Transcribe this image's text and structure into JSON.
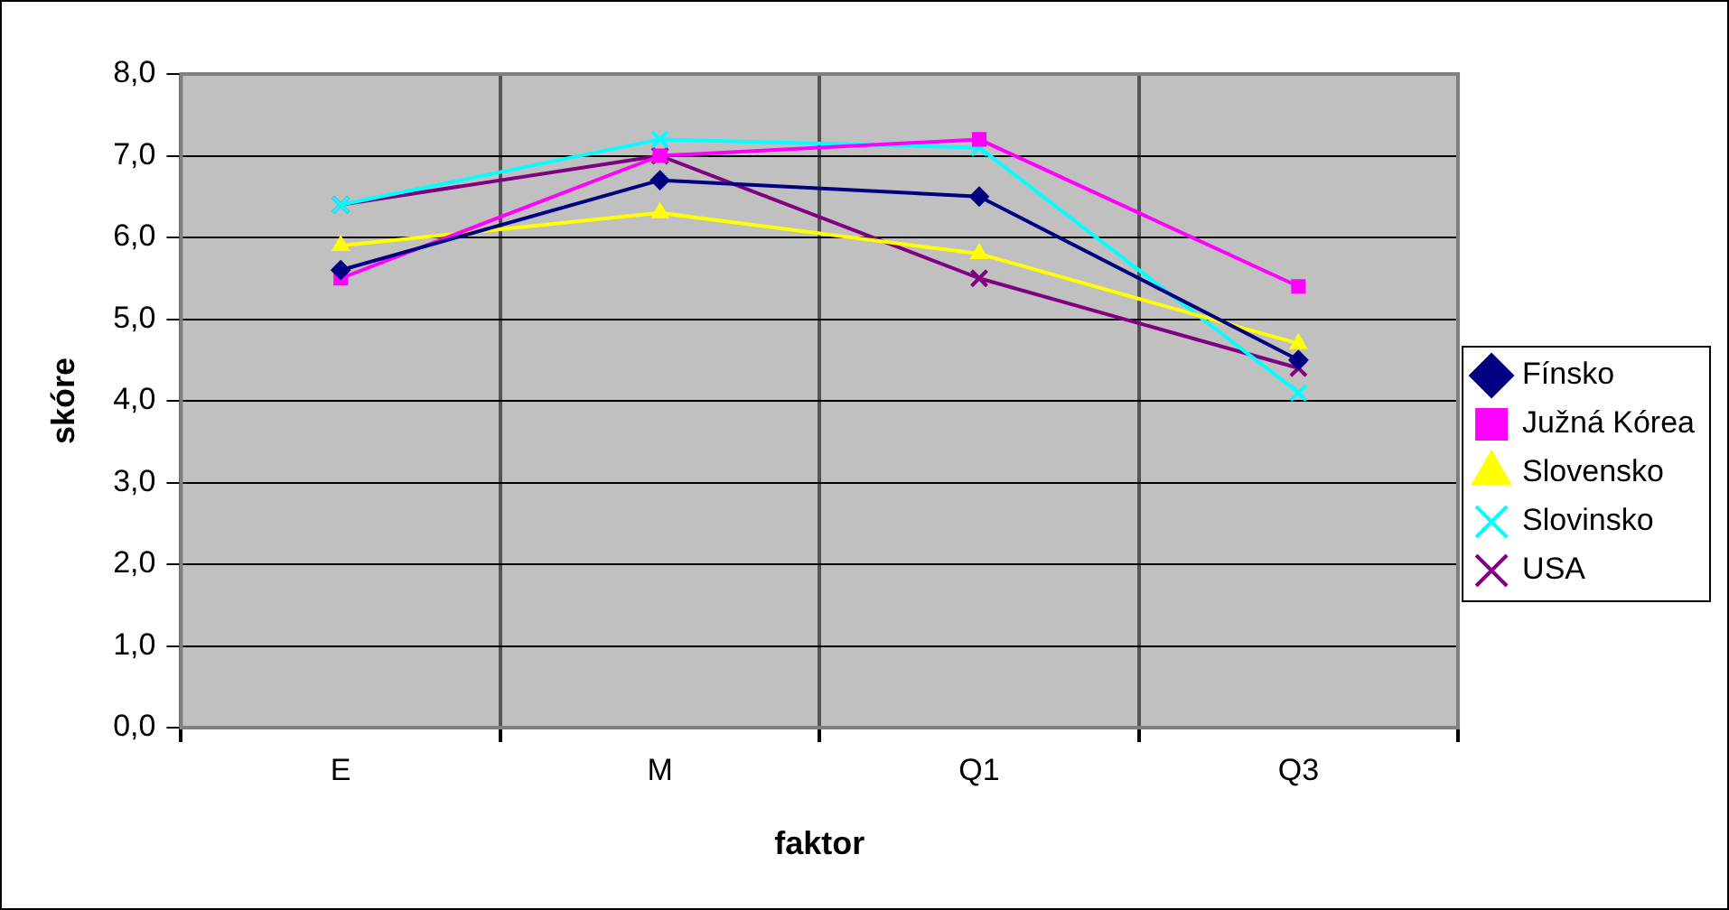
{
  "chart_data": {
    "type": "line",
    "xlabel": "faktor",
    "ylabel": "skóre",
    "categories": [
      "E",
      "M",
      "Q1",
      "Q3"
    ],
    "series": [
      {
        "name": "Fínsko",
        "color": "#000080",
        "marker": "diamond",
        "values": [
          5.6,
          6.7,
          6.5,
          4.5
        ]
      },
      {
        "name": "Južná Kórea",
        "color": "#ff00ff",
        "marker": "square",
        "values": [
          5.5,
          7.0,
          7.2,
          5.4
        ]
      },
      {
        "name": "Slovensko",
        "color": "#ffff00",
        "marker": "triangle",
        "values": [
          5.9,
          6.3,
          5.8,
          4.7
        ]
      },
      {
        "name": "Slovinsko",
        "color": "#00ffff",
        "marker": "cross",
        "values": [
          6.4,
          7.2,
          7.1,
          4.1
        ]
      },
      {
        "name": "USA",
        "color": "#800080",
        "marker": "cross",
        "values": [
          6.4,
          7.0,
          5.5,
          4.4
        ]
      }
    ],
    "ylim": [
      0,
      8
    ],
    "yticks": [
      {
        "value": 0,
        "label": "0,0"
      },
      {
        "value": 1,
        "label": "1,0"
      },
      {
        "value": 2,
        "label": "2,0"
      },
      {
        "value": 3,
        "label": "3,0"
      },
      {
        "value": 4,
        "label": "4,0"
      },
      {
        "value": 5,
        "label": "5,0"
      },
      {
        "value": 6,
        "label": "6,0"
      },
      {
        "value": 7,
        "label": "7,0"
      },
      {
        "value": 8,
        "label": "8,0"
      }
    ],
    "grid": true,
    "legend": "right",
    "line_style": "solid"
  }
}
